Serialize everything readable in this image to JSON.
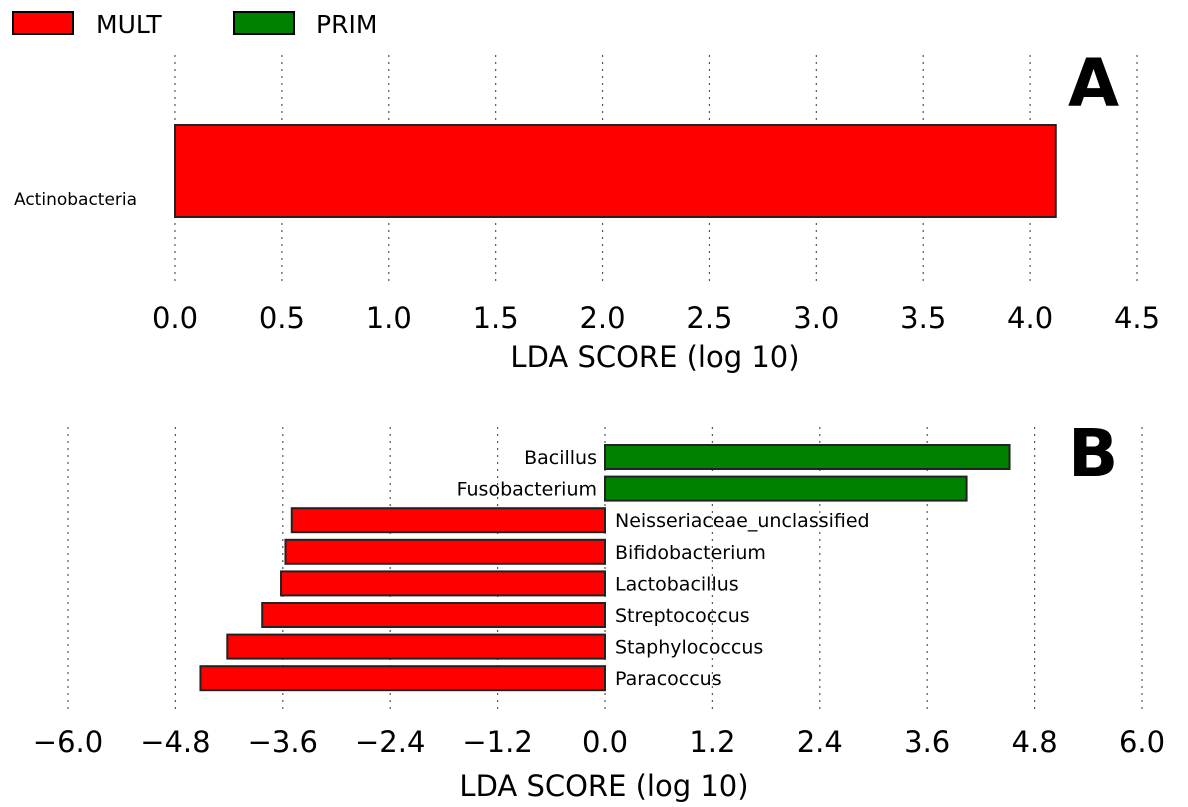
{
  "legend": [
    {
      "label": "MULT",
      "color": "#ff0000"
    },
    {
      "label": "PRIM",
      "color": "#008000"
    }
  ],
  "chart_data": [
    {
      "type": "bar",
      "orientation": "horizontal",
      "panel_label": "A",
      "categories": [
        "Actinobacteria"
      ],
      "values": [
        4.12
      ],
      "groups": [
        "MULT"
      ],
      "xlabel": "LDA SCORE (log 10)",
      "xlim": [
        0.0,
        4.5
      ],
      "xticks": [
        "0.0",
        "0.5",
        "1.0",
        "1.5",
        "2.0",
        "2.5",
        "3.0",
        "3.5",
        "4.0",
        "4.5"
      ],
      "grid": true
    },
    {
      "type": "bar",
      "orientation": "horizontal",
      "panel_label": "B",
      "categories": [
        "Bacillus",
        "Fusobacterium",
        "Neisseriaceae_unclassified",
        "Bifidobacterium",
        "Lactobacillus",
        "Streptococcus",
        "Staphylococcus",
        "Paracoccus"
      ],
      "values": [
        4.52,
        4.04,
        -3.5,
        -3.57,
        -3.62,
        -3.83,
        -4.22,
        -4.52
      ],
      "groups": [
        "PRIM",
        "PRIM",
        "MULT",
        "MULT",
        "MULT",
        "MULT",
        "MULT",
        "MULT"
      ],
      "xlabel": "LDA SCORE (log 10)",
      "xlim": [
        -6.0,
        6.0
      ],
      "xticks": [
        "−6.0",
        "−4.8",
        "−3.6",
        "−2.4",
        "−1.2",
        "0.0",
        "1.2",
        "2.4",
        "3.6",
        "4.8",
        "6.0"
      ],
      "grid": true
    }
  ]
}
